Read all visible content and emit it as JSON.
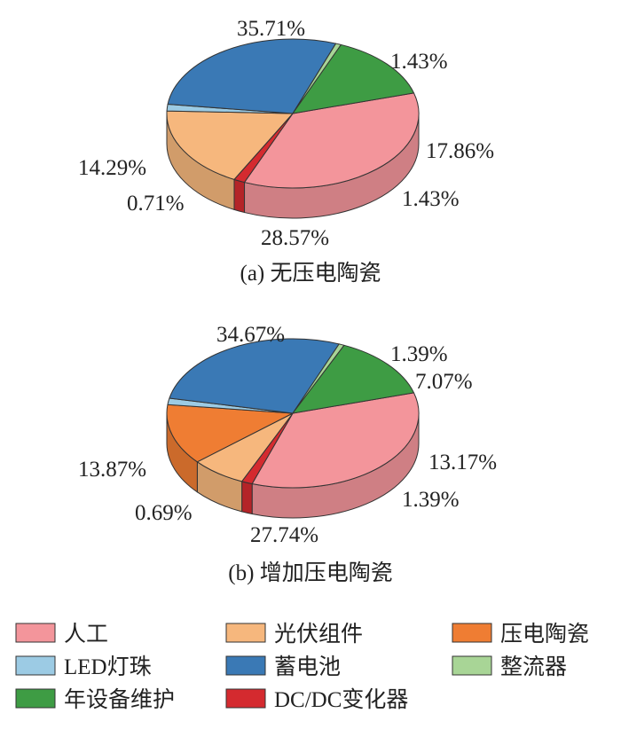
{
  "chart_data": [
    {
      "type": "pie",
      "title": "(a) 无压电陶瓷",
      "slices": [
        {
          "name": "人工",
          "value": 35.71,
          "label": "35.71%",
          "color": "#f3959b"
        },
        {
          "name": "DC/DC变化器",
          "value": 1.43,
          "label": "1.43%",
          "color": "#d42a2f"
        },
        {
          "name": "光伏组件",
          "value": 17.86,
          "label": "17.86%",
          "color": "#f6b77d"
        },
        {
          "name": "LED灯珠",
          "value": 1.43,
          "label": "1.43%",
          "color": "#9ccbe4"
        },
        {
          "name": "蓄电池",
          "value": 28.57,
          "label": "28.57%",
          "color": "#3a79b5"
        },
        {
          "name": "整流器",
          "value": 0.71,
          "label": "0.71%",
          "color": "#a8d596"
        },
        {
          "name": "年设备维护",
          "value": 14.29,
          "label": "14.29%",
          "color": "#3e9c44"
        }
      ]
    },
    {
      "type": "pie",
      "title": "(b) 增加压电陶瓷",
      "slices": [
        {
          "name": "人工",
          "value": 34.67,
          "label": "34.67%",
          "color": "#f3959b"
        },
        {
          "name": "DC/DC变化器",
          "value": 1.39,
          "label": "1.39%",
          "color": "#d42a2f"
        },
        {
          "name": "光伏组件",
          "value": 7.07,
          "label": "7.07%",
          "color": "#f6b77d"
        },
        {
          "name": "压电陶瓷",
          "value": 13.17,
          "label": "13.17%",
          "color": "#ef7d33"
        },
        {
          "name": "LED灯珠",
          "value": 1.39,
          "label": "1.39%",
          "color": "#9ccbe4"
        },
        {
          "name": "蓄电池",
          "value": 27.74,
          "label": "27.74%",
          "color": "#3a79b5"
        },
        {
          "name": "整流器",
          "value": 0.69,
          "label": "0.69%",
          "color": "#a8d596"
        },
        {
          "name": "年设备维护",
          "value": 13.87,
          "label": "13.87%",
          "color": "#3e9c44"
        }
      ]
    }
  ],
  "legend": [
    {
      "label": "人工",
      "color": "#f3959b"
    },
    {
      "label": "光伏组件",
      "color": "#f6b77d"
    },
    {
      "label": "压电陶瓷",
      "color": "#ef7d33"
    },
    {
      "label": "LED灯珠",
      "color": "#9ccbe4"
    },
    {
      "label": "蓄电池",
      "color": "#3a79b5"
    },
    {
      "label": "整流器",
      "color": "#a8d596"
    },
    {
      "label": "年设备维护",
      "color": "#3e9c44"
    },
    {
      "label": "DC/DC变化器",
      "color": "#d42a2f"
    }
  ]
}
